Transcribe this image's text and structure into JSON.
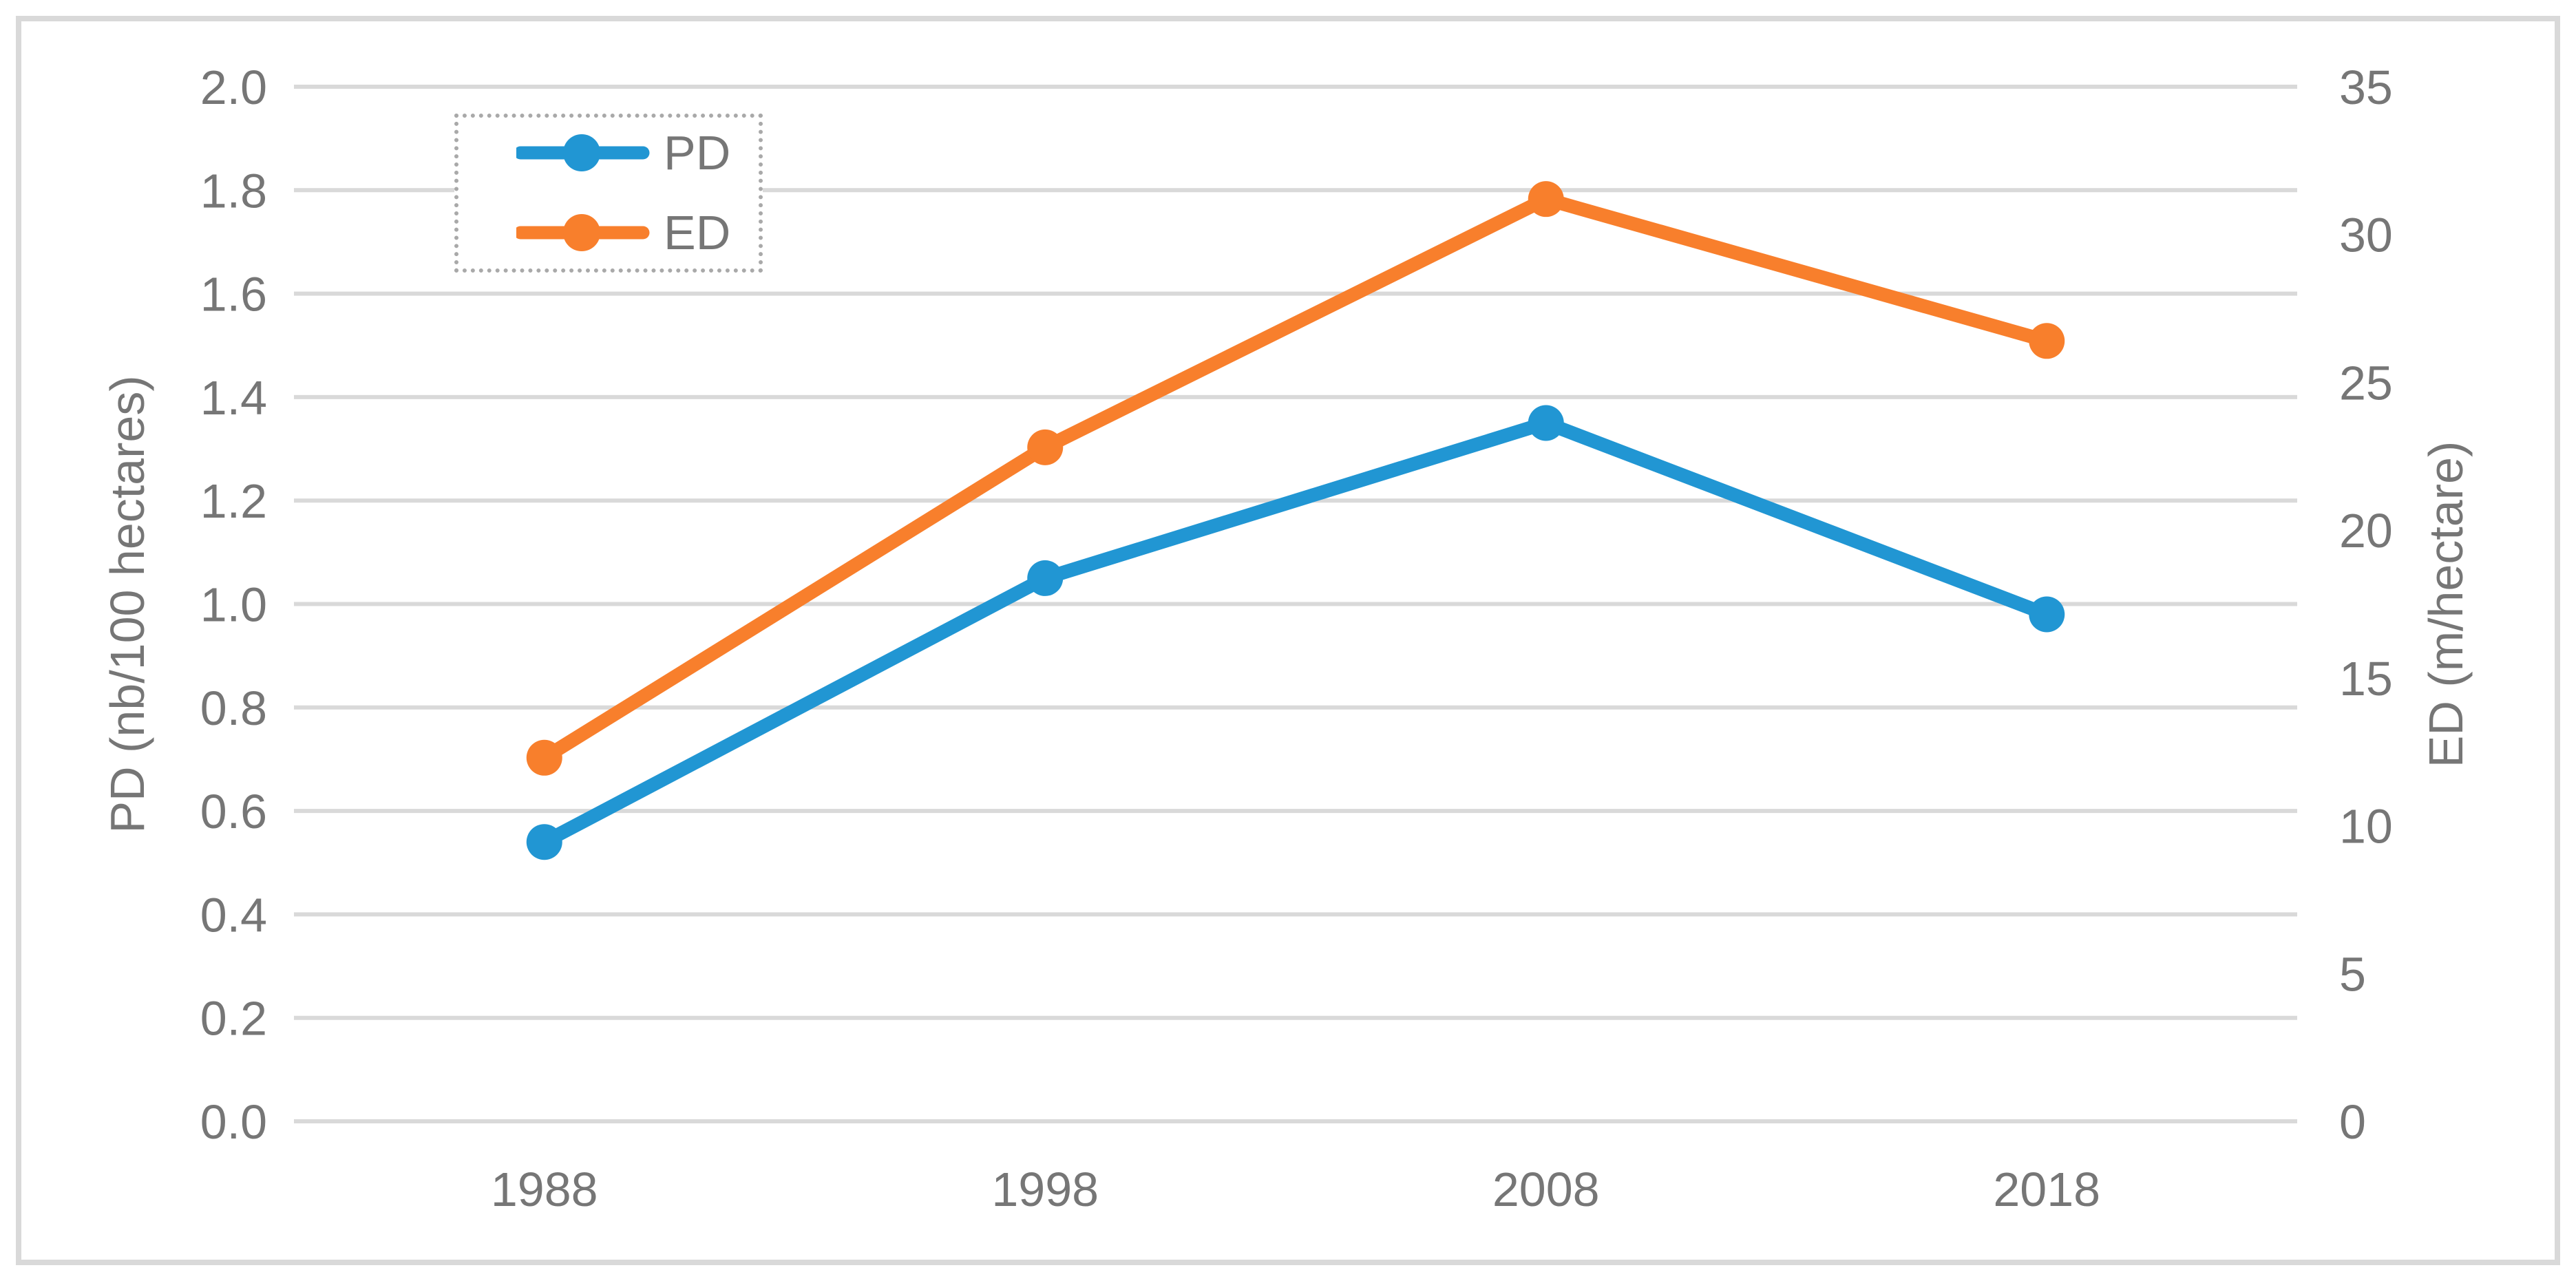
{
  "figure": {
    "background": "#ffffff",
    "frame_color": "#d9d9d9"
  },
  "chart_data": {
    "type": "line",
    "title": "",
    "categories": [
      "1988",
      "1998",
      "2008",
      "2018"
    ],
    "series": [
      {
        "name": "PD",
        "axis": "left",
        "color": "#2196d3",
        "unit": "nb/100 hectares",
        "values": [
          0.54,
          1.05,
          1.35,
          0.98
        ]
      },
      {
        "name": "ED",
        "axis": "right",
        "color": "#f87f2c",
        "unit": "m/hectare",
        "values": [
          12.3,
          22.8,
          31.2,
          26.4
        ]
      }
    ],
    "left_axis": {
      "label": "PD (nb/100 hectares)",
      "lim": [
        0,
        2
      ],
      "ticks": [
        "0.0",
        "0.2",
        "0.4",
        "0.6",
        "0.8",
        "1.0",
        "1.2",
        "1.4",
        "1.6",
        "1.8",
        "2.0"
      ]
    },
    "right_axis": {
      "label": "ED (m/hectare)",
      "lim": [
        0,
        35
      ],
      "ticks": [
        "0",
        "5",
        "10",
        "15",
        "20",
        "25",
        "30",
        "35"
      ]
    },
    "grid": true,
    "legend": {
      "position": "top-left-inside",
      "entries": [
        "PD",
        "ED"
      ]
    },
    "styles": {
      "grid_color": "#d9d9d9",
      "text_color": "#767676",
      "line_width": 20,
      "marker": "circle",
      "marker_radius": 26
    }
  }
}
